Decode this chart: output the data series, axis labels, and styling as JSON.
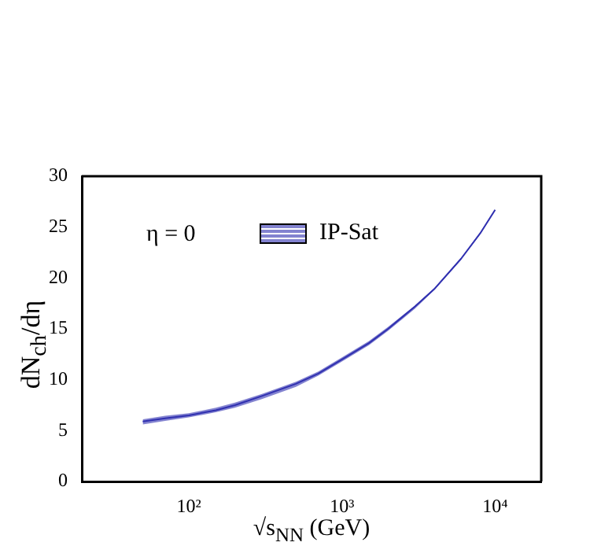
{
  "chart_data": {
    "type": "line",
    "xlabel": "√s$_{NN}$ (GeV)",
    "ylabel": "dN$_{ch}$/dη",
    "annotations": [
      "η = 0"
    ],
    "x": [
      50,
      70,
      100,
      150,
      200,
      300,
      500,
      700,
      1000,
      1500,
      2000,
      3000,
      4000,
      6000,
      8000,
      10000
    ],
    "series": [
      {
        "name": "IP-Sat",
        "color": "#3030b0",
        "values": [
          5.9,
          6.2,
          6.5,
          7.0,
          7.5,
          8.4,
          9.6,
          10.6,
          12.0,
          13.6,
          15.0,
          17.2,
          18.9,
          21.9,
          24.4,
          26.7
        ],
        "lower": [
          5.6,
          5.95,
          6.3,
          6.8,
          7.25,
          8.1,
          9.3,
          10.4,
          11.8,
          13.4,
          14.8,
          17.0,
          18.8,
          21.8,
          24.3,
          26.6
        ],
        "upper": [
          6.1,
          6.45,
          6.7,
          7.25,
          7.75,
          8.6,
          9.8,
          10.8,
          12.2,
          13.8,
          15.2,
          17.3,
          19.0,
          22.0,
          24.5,
          26.8
        ]
      }
    ],
    "log": "x",
    "xlim": [
      20,
      20000
    ],
    "xticks": [
      {
        "value": 100,
        "label": "10²"
      },
      {
        "value": 1000,
        "label": "10³"
      },
      {
        "value": 10000,
        "label": "10⁴"
      }
    ],
    "ylim": [
      0,
      30
    ],
    "yticks": [
      0,
      5,
      10,
      15,
      20,
      25,
      30
    ],
    "grid": false,
    "legend": "top",
    "marker": "none",
    "line_style": "solid"
  }
}
